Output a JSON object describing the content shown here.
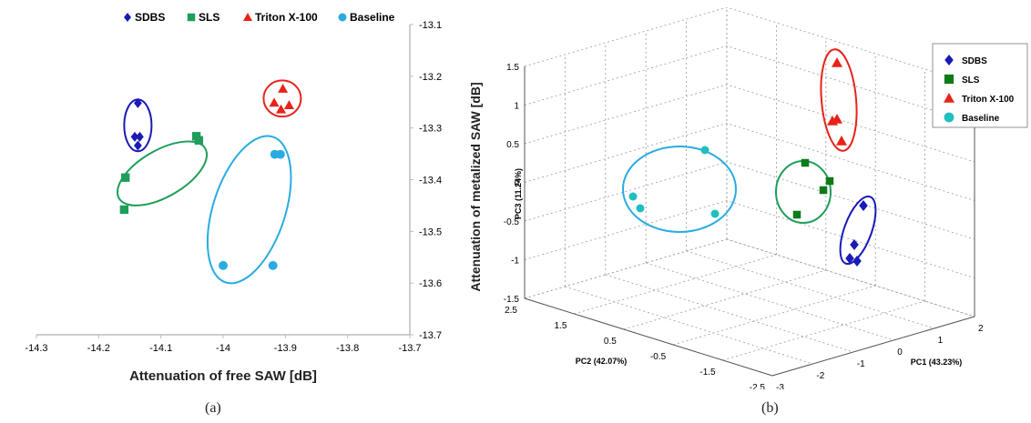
{
  "captions": {
    "a": "(a)",
    "b": "(b)"
  },
  "legend_colors": {
    "SDBS": "#1a1ab8",
    "SLS": "#1e9e5a",
    "Triton X-100": "#e8231b",
    "Baseline": "#29abe2"
  },
  "chart_data": [
    {
      "type": "scatter",
      "panel": "(a)",
      "xlabel": "Attenuation of free SAW [dB]",
      "ylabel": "Attenuation of metalized SAW [dB]",
      "xlim": [
        -14.3,
        -13.7
      ],
      "ylim": [
        -13.7,
        -13.1
      ],
      "x_ticks": [
        "-14.3",
        "-14.2",
        "-14.1",
        "-14",
        "-13.9",
        "-13.8",
        "-13.7"
      ],
      "y_ticks": [
        "-13.1",
        "-13.2",
        "-13.3",
        "-13.4",
        "-13.5",
        "-13.6",
        "-13.7"
      ],
      "legend": "top",
      "y_axis_side": "right",
      "series": [
        {
          "name": "SDBS",
          "marker": "diamond",
          "color": "#1a1ab8",
          "points": [
            [
              -14.137,
              -13.252
            ],
            [
              -14.142,
              -13.317
            ],
            [
              -14.134,
              -13.317
            ],
            [
              -14.137,
              -13.334
            ]
          ]
        },
        {
          "name": "SLS",
          "marker": "square",
          "color": "#1e9e5a",
          "points": [
            [
              -14.043,
              -13.316
            ],
            [
              -14.039,
              -13.324
            ],
            [
              -14.157,
              -13.396
            ],
            [
              -14.159,
              -13.458
            ]
          ]
        },
        {
          "name": "Triton X-100",
          "marker": "triangle",
          "color": "#e8231b",
          "points": [
            [
              -13.904,
              -13.224
            ],
            [
              -13.918,
              -13.251
            ],
            [
              -13.894,
              -13.256
            ],
            [
              -13.907,
              -13.264
            ]
          ]
        },
        {
          "name": "Baseline",
          "marker": "circle",
          "color": "#29abe2",
          "points": [
            [
              -13.917,
              -13.351
            ],
            [
              -13.908,
              -13.351
            ],
            [
              -14.0,
              -13.566
            ],
            [
              -13.92,
              -13.566
            ]
          ]
        }
      ]
    },
    {
      "type": "scatter",
      "panel": "(b)",
      "projection": "3d",
      "xlabel": "PC1 (43.23%)",
      "ylabel": "PC2 (42.07%)",
      "zlabel": "PC3 (11.24%)",
      "pc1_ticks": [
        "-3",
        "-2",
        "-1",
        "0",
        "1",
        "2"
      ],
      "pc2_ticks": [
        "2.5",
        "1.5",
        "0.5",
        "-0.5",
        "-1.5",
        "-2.5"
      ],
      "pc3_ticks": [
        "1.5",
        "1",
        "0.5",
        "0",
        "-0.5",
        "-1",
        "-1.5"
      ],
      "grid": true,
      "legend": "top-right",
      "series": [
        {
          "name": "SDBS",
          "marker": "diamond",
          "color": "#1a1ab8"
        },
        {
          "name": "SLS",
          "marker": "square",
          "color": "#0f7a1a"
        },
        {
          "name": "Triton X-100",
          "marker": "triangle",
          "color": "#e8231b"
        },
        {
          "name": "Baseline",
          "marker": "circle",
          "color": "#1fbfbf"
        }
      ]
    }
  ]
}
